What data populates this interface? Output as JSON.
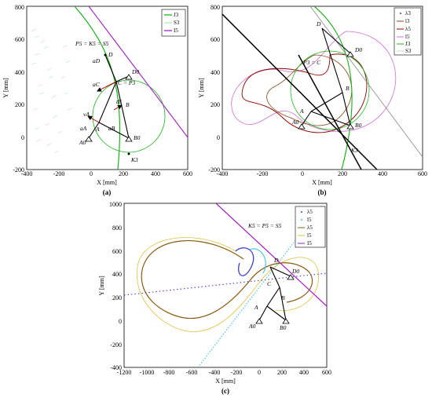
{
  "panels": [
    {
      "caption": "(a)",
      "xlabel": "X [mm]",
      "ylabel": "Y [mm]",
      "xticks": [
        "-400",
        "-200",
        "0",
        "200",
        "400",
        "600"
      ],
      "yticks": [
        "800",
        "600",
        "400",
        "200",
        "0",
        "-200"
      ],
      "legend": [
        "J3",
        "S3",
        "I5"
      ],
      "legend_colors": [
        "#1db31d",
        "#b8e6b8",
        "#a020c0"
      ],
      "labels": {
        "p5": "P5 = K5 = S5",
        "d": "D",
        "aD": "aD",
        "cP3": "C = P3",
        "aC": "aC",
        "tB": "tB",
        "b": "B",
        "vA": "vA",
        "aA": "aA",
        "aB": "aB",
        "a": "A",
        "a0": "A0",
        "b0": "B0",
        "d0": "D0",
        "k3": "K3"
      }
    },
    {
      "caption": "(b)",
      "xlabel": "X [mm]",
      "ylabel": "Y [mm]",
      "xticks": [
        "-400",
        "-200",
        "0",
        "200",
        "400",
        "600"
      ],
      "yticks": [
        "800",
        "600",
        "400",
        "200",
        "0",
        "-200"
      ],
      "legend": [
        "λ3",
        "l3",
        "λ5",
        "l5",
        "J3",
        "S3"
      ],
      "legend_colors": [
        "#4040a0",
        "#8b4513",
        "#8b0000",
        "#d070d0",
        "#1db31d",
        "#b8e6b8"
      ],
      "labels": {
        "d": "D",
        "d0": "D0",
        "p3c": "P3 = C",
        "b": "B",
        "a": "A",
        "a0": "A0",
        "b0": "B0",
        "k3": "K3"
      }
    },
    {
      "caption": "(c)",
      "xlabel": "X [mm]",
      "ylabel": "Y [mm]",
      "xticks": [
        "-1200",
        "-1000",
        "-800",
        "-600",
        "-400",
        "-200",
        "0",
        "200",
        "400",
        "600"
      ],
      "yticks": [
        "1000",
        "800",
        "600",
        "400",
        "200",
        "0",
        "-200",
        "-400"
      ],
      "legend": [
        "λ5",
        "l5",
        "λ5",
        "l5",
        "I5"
      ],
      "legend_colors": [
        "#4040d0",
        "#40c0e0",
        "#8b5a10",
        "#e0c040",
        "#a020c0"
      ],
      "annotation": "K5 = P5 = S5",
      "labels": {
        "d": "D",
        "d0": "D0",
        "c": "C",
        "b": "B",
        "a": "A",
        "a0": "A0",
        "b0": "B0"
      }
    }
  ]
}
